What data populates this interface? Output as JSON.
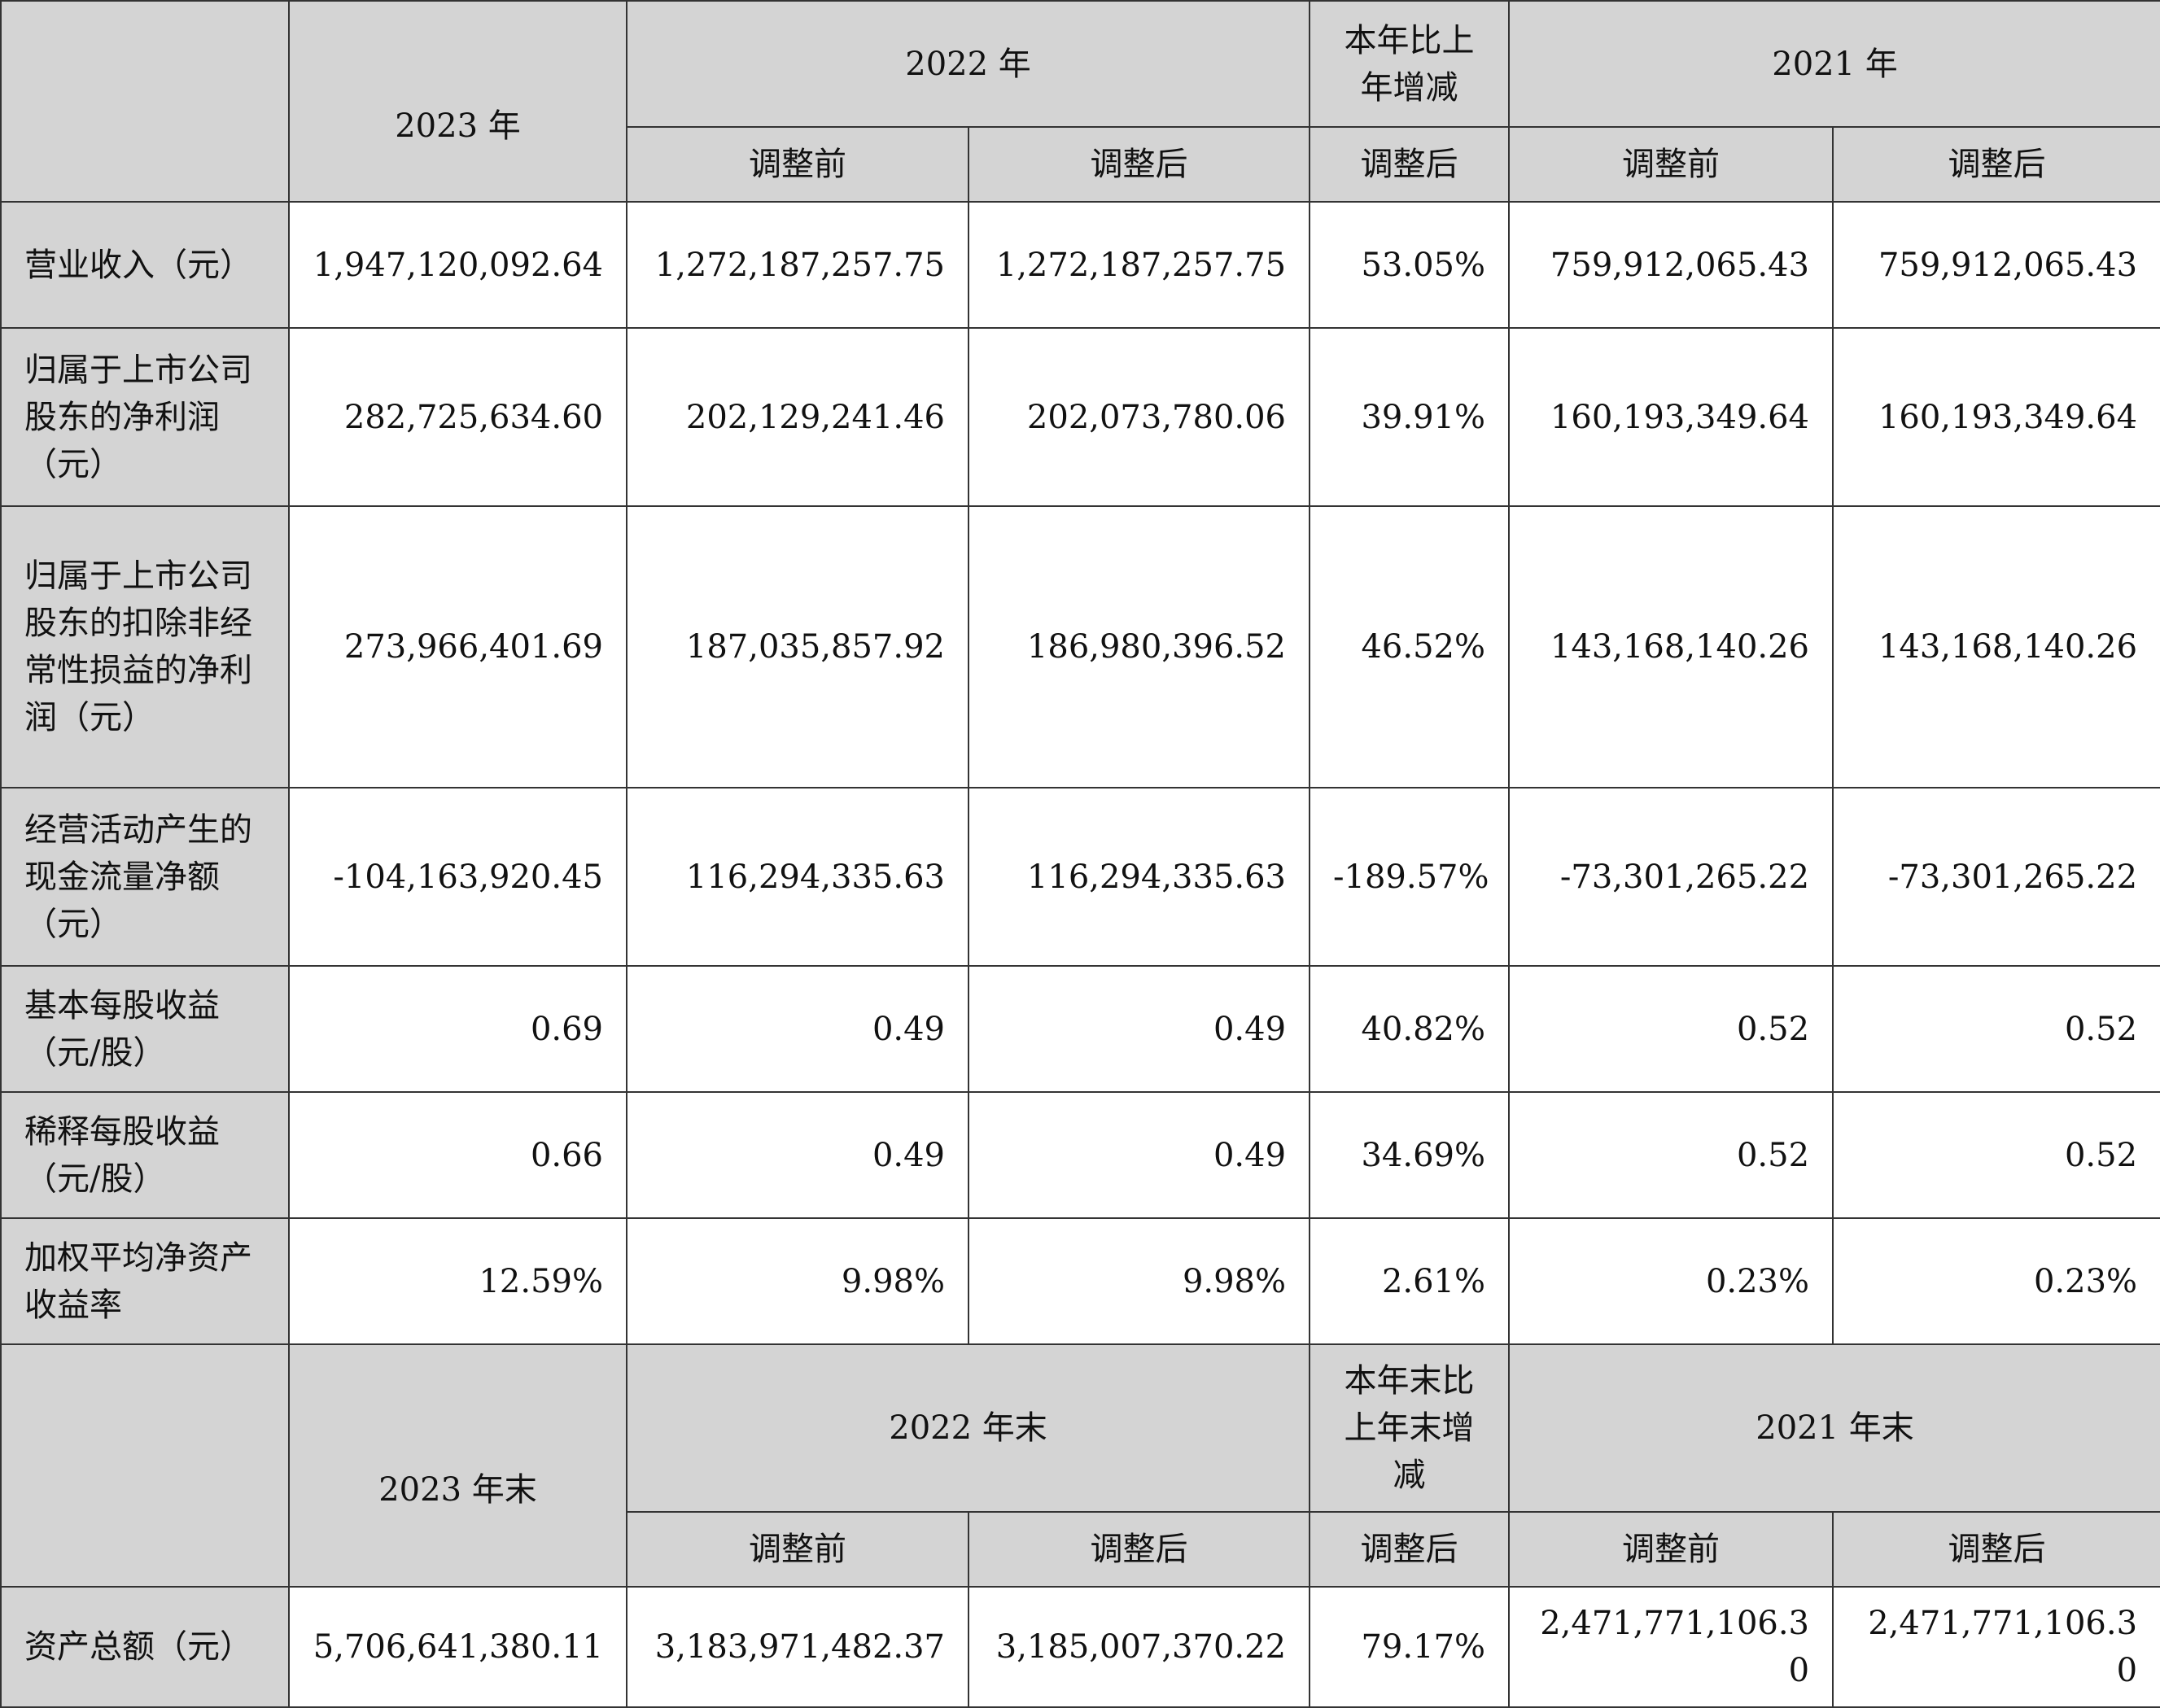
{
  "header1": {
    "y2023": "2023 年",
    "y2022": "2022 年",
    "change": "本年比上年增减",
    "y2021": "2021 年",
    "before": "调整前",
    "after": "调整后"
  },
  "rows1": [
    {
      "label": "营业收入（元）",
      "v2023": "1,947,120,092.64",
      "v2022_before": "1,272,187,257.75",
      "v2022_after": "1,272,187,257.75",
      "change": "53.05%",
      "v2021_before": "759,912,065.43",
      "v2021_after": "759,912,065.43"
    },
    {
      "label": "归属于上市公司股东的净利润（元）",
      "v2023": "282,725,634.60",
      "v2022_before": "202,129,241.46",
      "v2022_after": "202,073,780.06",
      "change": "39.91%",
      "v2021_before": "160,193,349.64",
      "v2021_after": "160,193,349.64"
    },
    {
      "label": "归属于上市公司股东的扣除非经常性损益的净利润（元）",
      "v2023": "273,966,401.69",
      "v2022_before": "187,035,857.92",
      "v2022_after": "186,980,396.52",
      "change": "46.52%",
      "v2021_before": "143,168,140.26",
      "v2021_after": "143,168,140.26"
    },
    {
      "label": "经营活动产生的现金流量净额（元）",
      "v2023": "-104,163,920.45",
      "v2022_before": "116,294,335.63",
      "v2022_after": "116,294,335.63",
      "change": "-189.57%",
      "v2021_before": "-73,301,265.22",
      "v2021_after": "-73,301,265.22"
    },
    {
      "label": "基本每股收益（元/股）",
      "v2023": "0.69",
      "v2022_before": "0.49",
      "v2022_after": "0.49",
      "change": "40.82%",
      "v2021_before": "0.52",
      "v2021_after": "0.52"
    },
    {
      "label": "稀释每股收益（元/股）",
      "v2023": "0.66",
      "v2022_before": "0.49",
      "v2022_after": "0.49",
      "change": "34.69%",
      "v2021_before": "0.52",
      "v2021_after": "0.52"
    },
    {
      "label": "加权平均净资产收益率",
      "v2023": "12.59%",
      "v2022_before": "9.98%",
      "v2022_after": "9.98%",
      "change": "2.61%",
      "v2021_before": "0.23%",
      "v2021_after": "0.23%"
    }
  ],
  "header2": {
    "y2023": "2023 年末",
    "y2022": "2022 年末",
    "change": "本年末比上年末增减",
    "y2021": "2021 年末",
    "before": "调整前",
    "after": "调整后"
  },
  "rows2": [
    {
      "label": "资产总额（元）",
      "v2023": "5,706,641,380.11",
      "v2022_before": "3,183,971,482.37",
      "v2022_after": "3,185,007,370.22",
      "change": "79.17%",
      "v2021_before": "2,471,771,106.30",
      "v2021_after": "2,471,771,106.30"
    }
  ]
}
